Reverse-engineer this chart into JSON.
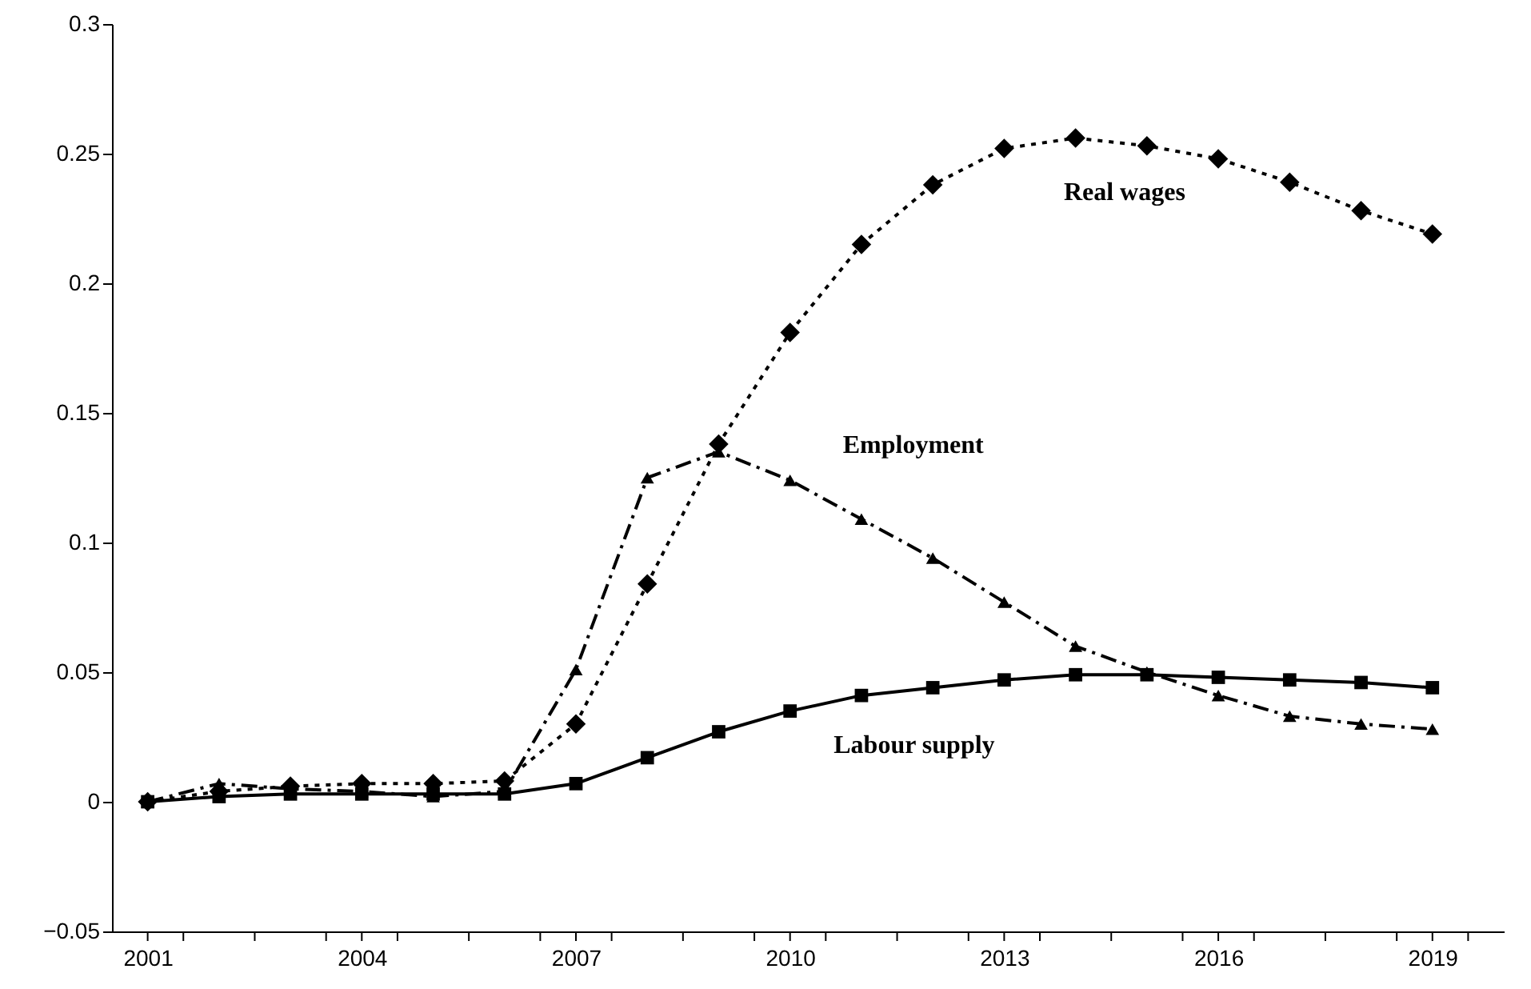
{
  "chart_data": {
    "type": "line",
    "x": [
      2001,
      2002,
      2003,
      2004,
      2005,
      2006,
      2007,
      2008,
      2009,
      2010,
      2011,
      2012,
      2013,
      2014,
      2015,
      2016,
      2017,
      2018,
      2019
    ],
    "series": [
      {
        "name": "Real wages",
        "color": "#000000",
        "marker": "diamond",
        "line_style": "dotted",
        "values": [
          0,
          0.004,
          0.006,
          0.007,
          0.007,
          0.008,
          0.03,
          0.084,
          0.138,
          0.181,
          0.215,
          0.238,
          0.252,
          0.256,
          0.253,
          0.248,
          0.239,
          0.228,
          0.219
        ]
      },
      {
        "name": "Employment",
        "color": "#000000",
        "marker": "triangle",
        "line_style": "dashed",
        "values": [
          0,
          0.007,
          0.005,
          0.004,
          0.002,
          0.004,
          0.051,
          0.125,
          0.135,
          0.124,
          0.109,
          0.094,
          0.077,
          0.06,
          0.05,
          0.041,
          0.033,
          0.03,
          0.028
        ]
      },
      {
        "name": "Labour supply",
        "color": "#000000",
        "marker": "square",
        "line_style": "solid",
        "values": [
          0,
          0.002,
          0.003,
          0.003,
          0.003,
          0.003,
          0.007,
          0.017,
          0.027,
          0.035,
          0.041,
          0.044,
          0.047,
          0.049,
          0.049,
          0.048,
          0.047,
          0.046,
          0.044
        ]
      }
    ],
    "xlim": [
      2000.5,
      2020
    ],
    "xticks": [
      2001,
      {
        "value": 2001.5,
        "label": null
      },
      {
        "value": 2002.5,
        "label": null
      },
      2004,
      {
        "value": 2003.5,
        "label": null
      },
      {
        "value": 2004.5,
        "label": null
      },
      {
        "value": 2005.5,
        "label": null
      },
      2007,
      {
        "value": 2006.5,
        "label": null
      },
      {
        "value": 2007.5,
        "label": null
      },
      {
        "value": 2008.5,
        "label": null
      },
      2010,
      {
        "value": 2009.5,
        "label": null
      },
      {
        "value": 2010.5,
        "label": null
      },
      {
        "value": 2011.5,
        "label": null
      },
      2013,
      {
        "value": 2012.5,
        "label": null
      },
      {
        "value": 2013.5,
        "label": null
      },
      {
        "value": 2014.5,
        "label": null
      },
      2016,
      {
        "value": 2015.5,
        "label": null
      },
      {
        "value": 2016.5,
        "label": null
      },
      {
        "value": 2017.5,
        "label": null
      },
      2019,
      {
        "value": 2018.5,
        "label": null
      },
      {
        "value": 2019.5,
        "label": null
      }
    ],
    "ylim": [
      -0.05,
      0.3
    ],
    "yticks": [
      {
        "value": -0.05,
        "label": "−0.05"
      },
      0,
      0.05,
      0.1,
      0.15,
      0.2,
      0.25,
      0.3
    ],
    "grid": false
  }
}
